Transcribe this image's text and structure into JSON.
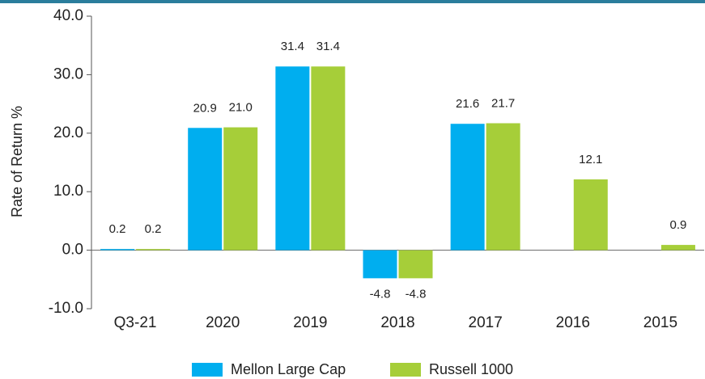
{
  "chart_data": {
    "type": "bar",
    "y_label": "Rate of Return %",
    "categories": [
      "Q3-21",
      "2020",
      "2019",
      "2018",
      "2017",
      "2016",
      "2015"
    ],
    "series": [
      {
        "name": "Mellon Large Cap",
        "color": "#00aeef",
        "values": [
          0.2,
          20.9,
          31.4,
          -4.8,
          21.6,
          null,
          null
        ],
        "value_labels": [
          "0.2",
          "20.9",
          "31.4",
          "-4.8",
          "21.6",
          null,
          null
        ]
      },
      {
        "name": "Russell 1000",
        "color": "#a6ce39",
        "values": [
          0.2,
          21.0,
          31.4,
          -4.8,
          21.7,
          12.1,
          0.9
        ],
        "value_labels": [
          "0.2",
          "21.0",
          "31.4",
          "-4.8",
          "21.7",
          "12.1",
          "0.9"
        ]
      }
    ],
    "ylim": [
      -10,
      40
    ],
    "yticks": [
      {
        "value": -10,
        "label": "-10.0"
      },
      {
        "value": 0,
        "label": "0.0"
      },
      {
        "value": 10,
        "label": "10.0"
      },
      {
        "value": 20,
        "label": "20.0"
      },
      {
        "value": 30,
        "label": "30.0"
      },
      {
        "value": 40,
        "label": "40.0"
      }
    ],
    "legend": "bottom"
  }
}
